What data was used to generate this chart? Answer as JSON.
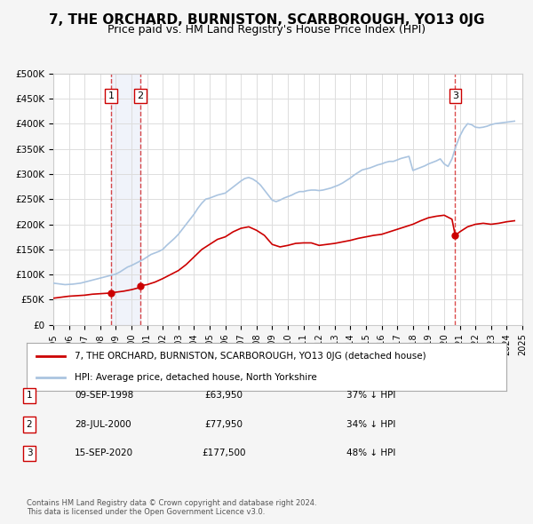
{
  "title": "7, THE ORCHARD, BURNISTON, SCARBOROUGH, YO13 0JG",
  "subtitle": "Price paid vs. HM Land Registry's House Price Index (HPI)",
  "title_fontsize": 11,
  "subtitle_fontsize": 9,
  "xlim": [
    1995,
    2025
  ],
  "ylim": [
    0,
    500000
  ],
  "yticks": [
    0,
    50000,
    100000,
    150000,
    200000,
    250000,
    300000,
    350000,
    400000,
    450000,
    500000
  ],
  "ytick_labels": [
    "£0",
    "£50K",
    "£100K",
    "£150K",
    "£200K",
    "£250K",
    "£300K",
    "£350K",
    "£400K",
    "£450K",
    "£500K"
  ],
  "xticks": [
    1995,
    1996,
    1997,
    1998,
    1999,
    2000,
    2001,
    2002,
    2003,
    2004,
    2005,
    2006,
    2007,
    2008,
    2009,
    2010,
    2011,
    2012,
    2013,
    2014,
    2015,
    2016,
    2017,
    2018,
    2019,
    2020,
    2021,
    2022,
    2023,
    2024,
    2025
  ],
  "hpi_color": "#aac4e0",
  "price_color": "#cc0000",
  "bg_color": "#f5f5f5",
  "plot_bg_color": "#ffffff",
  "grid_color": "#dddddd",
  "sale_points": [
    {
      "year": 1998.69,
      "price": 63950,
      "label": "1"
    },
    {
      "year": 2000.57,
      "price": 77950,
      "label": "2"
    },
    {
      "year": 2020.71,
      "price": 177500,
      "label": "3"
    }
  ],
  "vline_color": "#cc0000",
  "vline_alpha": 0.5,
  "shade_color": "#d0d8f0",
  "shade_alpha": 0.3,
  "legend_entries": [
    "7, THE ORCHARD, BURNISTON, SCARBOROUGH, YO13 0JG (detached house)",
    "HPI: Average price, detached house, North Yorkshire"
  ],
  "table_entries": [
    {
      "num": "1",
      "date": "09-SEP-1998",
      "price": "£63,950",
      "hpi": "37% ↓ HPI"
    },
    {
      "num": "2",
      "date": "28-JUL-2000",
      "price": "£77,950",
      "hpi": "34% ↓ HPI"
    },
    {
      "num": "3",
      "date": "15-SEP-2020",
      "price": "£177,500",
      "hpi": "48% ↓ HPI"
    }
  ],
  "footnote": "Contains HM Land Registry data © Crown copyright and database right 2024.\nThis data is licensed under the Open Government Licence v3.0.",
  "hpi_data_x": [
    1995.0,
    1995.25,
    1995.5,
    1995.75,
    1996.0,
    1996.25,
    1996.5,
    1996.75,
    1997.0,
    1997.25,
    1997.5,
    1997.75,
    1998.0,
    1998.25,
    1998.5,
    1998.75,
    1999.0,
    1999.25,
    1999.5,
    1999.75,
    2000.0,
    2000.25,
    2000.5,
    2000.75,
    2001.0,
    2001.25,
    2001.5,
    2001.75,
    2002.0,
    2002.25,
    2002.5,
    2002.75,
    2003.0,
    2003.25,
    2003.5,
    2003.75,
    2004.0,
    2004.25,
    2004.5,
    2004.75,
    2005.0,
    2005.25,
    2005.5,
    2005.75,
    2006.0,
    2006.25,
    2006.5,
    2006.75,
    2007.0,
    2007.25,
    2007.5,
    2007.75,
    2008.0,
    2008.25,
    2008.5,
    2008.75,
    2009.0,
    2009.25,
    2009.5,
    2009.75,
    2010.0,
    2010.25,
    2010.5,
    2010.75,
    2011.0,
    2011.25,
    2011.5,
    2011.75,
    2012.0,
    2012.25,
    2012.5,
    2012.75,
    2013.0,
    2013.25,
    2013.5,
    2013.75,
    2014.0,
    2014.25,
    2014.5,
    2014.75,
    2015.0,
    2015.25,
    2015.5,
    2015.75,
    2016.0,
    2016.25,
    2016.5,
    2016.75,
    2017.0,
    2017.25,
    2017.5,
    2017.75,
    2018.0,
    2018.25,
    2018.5,
    2018.75,
    2019.0,
    2019.25,
    2019.5,
    2019.75,
    2020.0,
    2020.25,
    2020.5,
    2020.75,
    2021.0,
    2021.25,
    2021.5,
    2021.75,
    2022.0,
    2022.25,
    2022.5,
    2022.75,
    2023.0,
    2023.25,
    2023.5,
    2023.75,
    2024.0,
    2024.25,
    2024.5
  ],
  "hpi_data_y": [
    83000,
    82000,
    81000,
    80000,
    80500,
    81000,
    82000,
    83000,
    85000,
    87000,
    89000,
    91000,
    93000,
    95000,
    97000,
    99000,
    101000,
    105000,
    110000,
    115000,
    118000,
    122000,
    126000,
    130000,
    135000,
    140000,
    143000,
    146000,
    150000,
    158000,
    165000,
    172000,
    180000,
    190000,
    200000,
    210000,
    220000,
    232000,
    242000,
    250000,
    252000,
    255000,
    258000,
    260000,
    262000,
    268000,
    274000,
    280000,
    286000,
    291000,
    293000,
    290000,
    285000,
    278000,
    268000,
    258000,
    248000,
    245000,
    248000,
    252000,
    255000,
    258000,
    262000,
    265000,
    265000,
    267000,
    268000,
    268000,
    267000,
    268000,
    270000,
    272000,
    275000,
    278000,
    282000,
    287000,
    292000,
    298000,
    303000,
    308000,
    310000,
    312000,
    315000,
    318000,
    320000,
    323000,
    325000,
    325000,
    328000,
    331000,
    333000,
    335000,
    307000,
    310000,
    313000,
    316000,
    320000,
    323000,
    326000,
    330000,
    320000,
    315000,
    330000,
    355000,
    375000,
    390000,
    400000,
    398000,
    393000,
    392000,
    393000,
    395000,
    398000,
    400000,
    401000,
    402000,
    403000,
    404000,
    405000
  ],
  "price_data_x": [
    1995.0,
    1995.5,
    1996.0,
    1996.5,
    1997.0,
    1997.5,
    1998.0,
    1998.5,
    1998.69,
    1999.0,
    1999.5,
    2000.0,
    2000.5,
    2000.57,
    2001.0,
    2001.5,
    2002.0,
    2002.5,
    2003.0,
    2003.5,
    2004.0,
    2004.5,
    2005.0,
    2005.5,
    2006.0,
    2006.5,
    2007.0,
    2007.5,
    2008.0,
    2008.5,
    2009.0,
    2009.5,
    2010.0,
    2010.5,
    2011.0,
    2011.5,
    2012.0,
    2012.5,
    2013.0,
    2013.5,
    2014.0,
    2014.5,
    2015.0,
    2015.5,
    2016.0,
    2016.5,
    2017.0,
    2017.5,
    2018.0,
    2018.5,
    2019.0,
    2019.5,
    2020.0,
    2020.5,
    2020.71,
    2021.0,
    2021.5,
    2022.0,
    2022.5,
    2023.0,
    2023.5,
    2024.0,
    2024.5
  ],
  "price_data_y": [
    53000,
    55000,
    57000,
    58000,
    59000,
    61000,
    62000,
    63000,
    63950,
    65000,
    67000,
    70000,
    74000,
    77950,
    80000,
    85000,
    92000,
    100000,
    108000,
    120000,
    135000,
    150000,
    160000,
    170000,
    175000,
    185000,
    192000,
    195000,
    188000,
    178000,
    160000,
    155000,
    158000,
    162000,
    163000,
    163000,
    158000,
    160000,
    162000,
    165000,
    168000,
    172000,
    175000,
    178000,
    180000,
    185000,
    190000,
    195000,
    200000,
    207000,
    213000,
    216000,
    218000,
    210000,
    177500,
    185000,
    195000,
    200000,
    202000,
    200000,
    202000,
    205000,
    207000
  ]
}
